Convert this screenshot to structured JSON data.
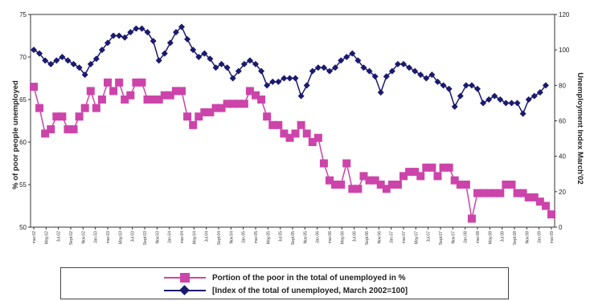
{
  "chart_data": {
    "type": "line",
    "xlabel": "",
    "ylabel_left": "% of poor people unemployed",
    "ylabel_right": "Unemployment Index March'02",
    "ylim_left": [
      50,
      75
    ],
    "yticks_left": [
      "50",
      "55",
      "60",
      "65",
      "70",
      "75"
    ],
    "ylim_right": [
      0,
      120
    ],
    "yticks_right": [
      "0",
      "20",
      "40",
      "60",
      "80",
      "100",
      "120"
    ],
    "x_tick_labels": [
      "mar.02",
      "May.02",
      "Jul.02",
      "Sept.02",
      "Nov.02",
      "Jan.03",
      "mar.03",
      "May.03",
      "Jul.03",
      "Sept.03",
      "Nov.03",
      "Jan.04",
      "mar.04",
      "May.04",
      "Jul.04",
      "Sept.04",
      "Nov.04",
      "Jan.05",
      "mar.05",
      "May.05",
      "Jul.05",
      "Sept.05",
      "Nov.05",
      "Jan.06",
      "mar.06",
      "May.06",
      "Jul.06",
      "Sept.06",
      "Nov.06",
      "Jan.07",
      "mar.07",
      "May.07",
      "Jul.07",
      "Sept.07",
      "Nov.07",
      "Jan.08",
      "mar.08",
      "May.08",
      "Jul.08",
      "Sept.08",
      "Nov.08",
      "Jan.09",
      "mar.09"
    ],
    "grid": false,
    "legend_position": "bottom",
    "series": [
      {
        "name": "Portion of the poor in the total of unemployed in %",
        "axis": "left",
        "color": "#cc44aa",
        "marker": "square",
        "values": [
          66.5,
          64,
          61,
          61.5,
          63,
          63,
          61.5,
          61.5,
          63,
          64,
          66,
          64,
          65,
          67,
          66,
          67,
          65,
          65.5,
          67,
          67,
          65,
          65,
          65,
          65.5,
          65.5,
          66,
          66,
          63,
          62,
          63,
          63.5,
          63.5,
          64,
          64,
          64.5,
          64.5,
          64.5,
          64.5,
          66,
          65.5,
          65,
          63,
          62,
          62,
          61,
          60.5,
          61,
          62,
          61,
          60,
          60.5,
          57.5,
          55.5,
          55,
          55,
          57.5,
          54.5,
          54.5,
          56,
          55.5,
          55.5,
          55,
          54.5,
          55,
          55,
          56,
          56.5,
          56.5,
          56,
          57,
          57,
          56,
          57,
          57,
          55.5,
          55,
          55,
          51,
          54,
          54,
          54,
          54,
          54,
          55,
          55,
          54,
          54,
          53.5,
          53.5,
          53,
          52.5,
          51.5
        ]
      },
      {
        "name": "[Index of the total of unemployed, March 2002=100]",
        "axis": "right",
        "color": "#1a1a6e",
        "marker": "diamond",
        "values": [
          100,
          98,
          94,
          92,
          94,
          96,
          94,
          92,
          90,
          86,
          92,
          95,
          100,
          104,
          108,
          108,
          107,
          110,
          112,
          112,
          110,
          105,
          94,
          98,
          104,
          110,
          113,
          106,
          100,
          96,
          98,
          95,
          90,
          92,
          90,
          84,
          88,
          92,
          94,
          92,
          88,
          80,
          82,
          82,
          84,
          84,
          84,
          74,
          80,
          88,
          90,
          90,
          88,
          90,
          94,
          96,
          98,
          94,
          90,
          88,
          85,
          76,
          85,
          88,
          92,
          92,
          90,
          88,
          86,
          84,
          86,
          82,
          80,
          78,
          68,
          74,
          80,
          80,
          78,
          70,
          72,
          74,
          72,
          70,
          70,
          70,
          64,
          72,
          74,
          76,
          80
        ]
      }
    ]
  }
}
